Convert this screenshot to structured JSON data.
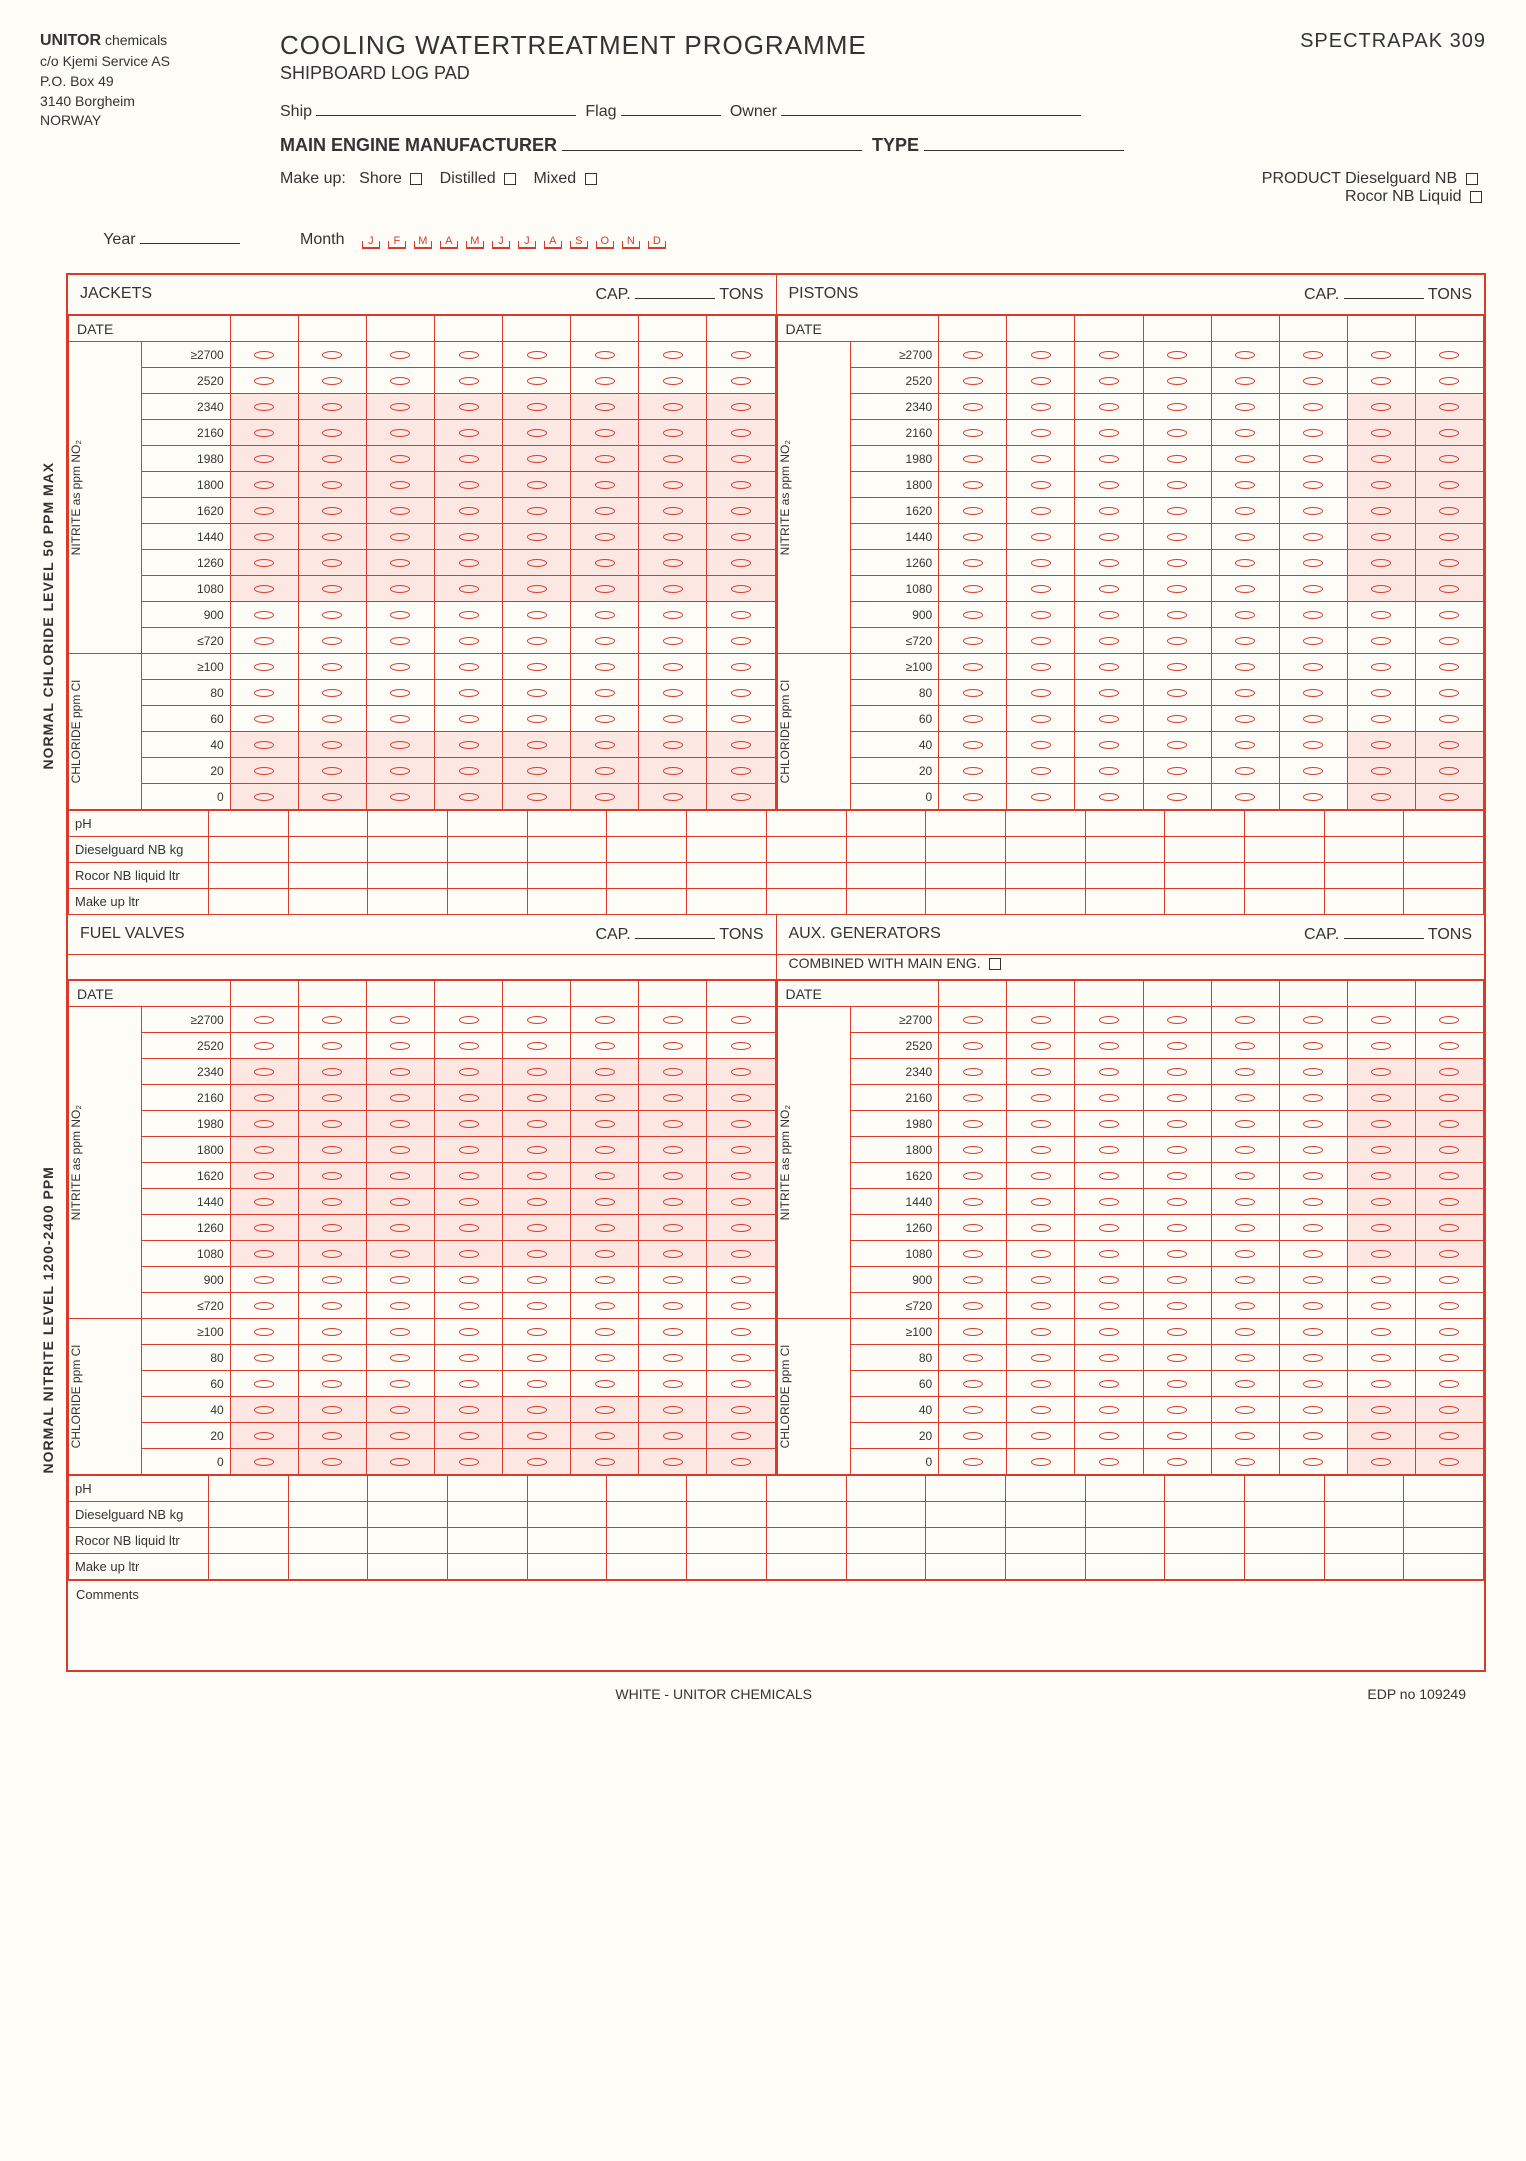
{
  "company": {
    "name_bold": "UNITOR",
    "name_rest": "chemicals",
    "line1": "c/o Kjemi Service AS",
    "line2": "P.O. Box 49",
    "line3": "3140 Borgheim",
    "line4": "NORWAY"
  },
  "titles": {
    "main": "COOLING WATERTREATMENT PROGRAMME",
    "sub": "SHIPBOARD LOG PAD",
    "spec": "SPECTRAPAK 309"
  },
  "fields": {
    "ship": "Ship",
    "flag": "Flag",
    "owner": "Owner",
    "mem": "MAIN ENGINE MANUFACTURER",
    "type": "TYPE",
    "makeup": "Make up:",
    "shore": "Shore",
    "distilled": "Distilled",
    "mixed": "Mixed",
    "product": "PRODUCT",
    "prod1": "Dieselguard NB",
    "prod2": "Rocor NB Liquid",
    "year": "Year",
    "month": "Month"
  },
  "months": [
    "J",
    "F",
    "M",
    "A",
    "M",
    "J",
    "J",
    "A",
    "S",
    "O",
    "N",
    "D"
  ],
  "side_labels": {
    "top": "NORMAL CHLORIDE LEVEL 50 PPM MAX",
    "bottom": "NORMAL NITRITE LEVEL 1200-2400 PPM"
  },
  "row_group_labels": {
    "nitrite": "NITRITE as ppm NO₂",
    "chloride": "CHLORIDE ppm Cl"
  },
  "sections": [
    {
      "left_title": "JACKETS",
      "right_title": "PISTONS",
      "cap": "CAP.",
      "tons": "TONS",
      "extra_right": ""
    },
    {
      "left_title": "FUEL VALVES",
      "right_title": "AUX. GENERATORS",
      "cap": "CAP.",
      "tons": "TONS",
      "extra_right": "COMBINED WITH MAIN ENG."
    }
  ],
  "date_label": "DATE",
  "nitrite_rows": [
    "≥2700",
    "2520",
    "2340",
    "2160",
    "1980",
    "1800",
    "1620",
    "1440",
    "1260",
    "1080",
    "900",
    "≤720"
  ],
  "chloride_rows": [
    "≥100",
    "80",
    "60",
    "40",
    "20",
    "0"
  ],
  "bottom_rows": [
    "pH",
    "Dieselguard NB kg",
    "Rocor NB liquid ltr",
    "Make up ltr"
  ],
  "comments_label": "Comments",
  "footer": {
    "center": "WHITE - UNITOR CHEMICALS",
    "right": "EDP no 109249"
  },
  "cols_per_half": 8,
  "shading": {
    "nitrite_shaded_from_index": 2,
    "nitrite_shaded_to_index": 9,
    "chloride_shaded_from_index": 3,
    "chloride_shaded_to_index": 5,
    "right_half_shaded_last_cols": 2
  },
  "colors": {
    "line": "#d93a2b",
    "shade": "#fde7e3",
    "bg": "#fdfcf7"
  }
}
